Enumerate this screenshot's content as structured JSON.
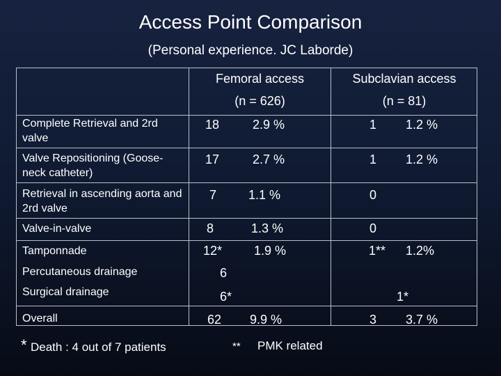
{
  "title": "Access Point Comparison",
  "subtitle": "(Personal experience. JC Laborde)",
  "columns": {
    "femoral": {
      "name": "Femoral access",
      "n": "(n = 626)"
    },
    "subclavian": {
      "name": "Subclavian access",
      "n": "(n = 81)"
    }
  },
  "rows": [
    {
      "label": "Complete Retrieval and 2rd valve",
      "fem_count": "18",
      "fem_pct": "2.9 %",
      "sub_count": "1",
      "sub_pct": "1.2 %"
    },
    {
      "label": "Valve Repositioning (Goose-neck catheter)",
      "fem_count": "17",
      "fem_pct": "2.7 %",
      "sub_count": "1",
      "sub_pct": "1.2 %"
    },
    {
      "label": "Retrieval in ascending aorta and 2rd valve",
      "fem_count": "7",
      "fem_pct": "1.1 %",
      "sub_count": "0"
    },
    {
      "label": "Valve-in-valve",
      "fem_count": "8",
      "fem_pct": "1.3 %",
      "sub_count": "0"
    },
    {
      "label": "Tamponnade",
      "fem_count": "12*",
      "fem_pct": "1.9 %",
      "sub_count": "1**",
      "sub_pct": "1.2%"
    },
    {
      "label": "Percutaneous drainage",
      "fem_count": "6"
    },
    {
      "label": "Surgical drainage",
      "fem_count": "6*",
      "sub_count": "1*"
    },
    {
      "label": "Overall",
      "fem_count": "62",
      "fem_pct": "9.9 %",
      "sub_count": "3",
      "sub_pct": "3.7 %"
    }
  ],
  "footnotes": {
    "single_star_symbol": "*",
    "single_star_text": "Death : 4 out of 7 patients",
    "double_star_symbol": "**",
    "double_star_text": "PMK related"
  }
}
